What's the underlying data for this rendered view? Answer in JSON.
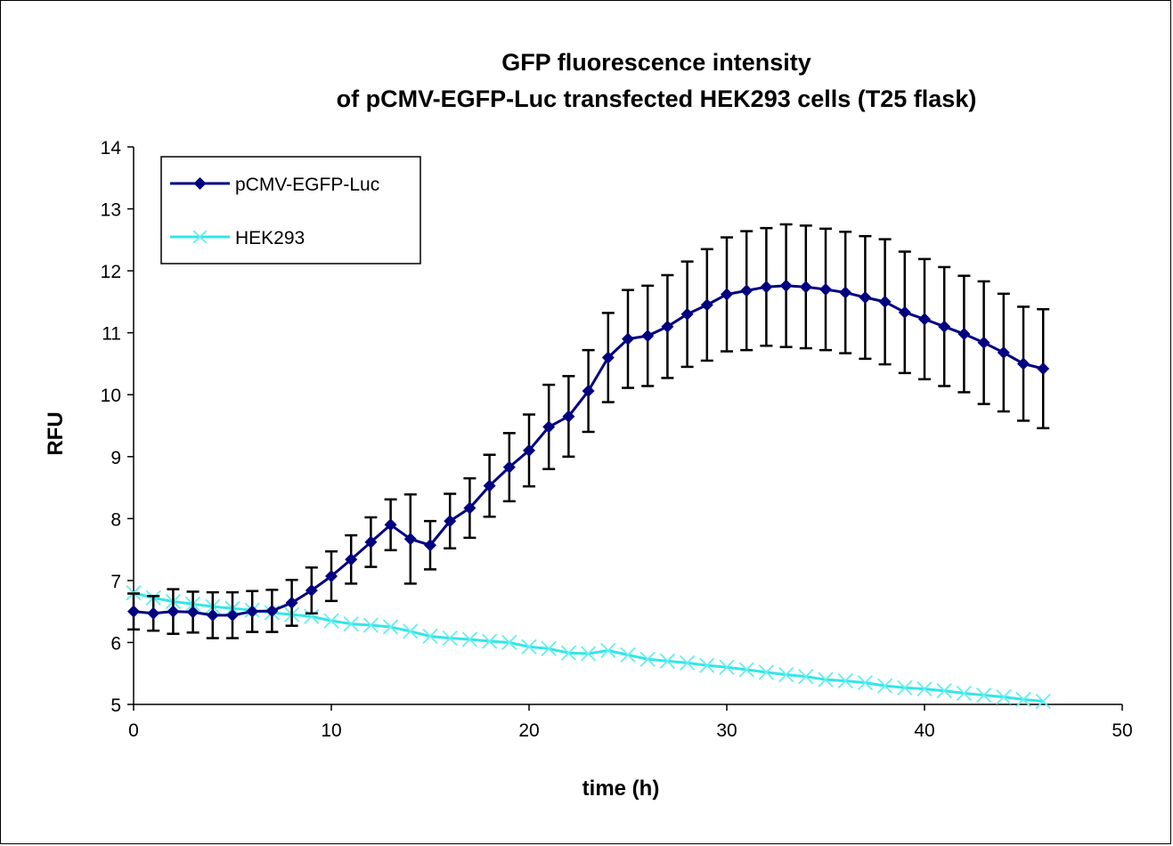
{
  "chart_data": {
    "type": "line",
    "title": [
      "GFP fluorescence intensity",
      "of pCMV-EGFP-Luc transfected HEK293 cells (T25 flask)"
    ],
    "xlabel": "time (h)",
    "ylabel": "RFU",
    "xlim": [
      0,
      50
    ],
    "ylim": [
      5,
      14
    ],
    "xticks": [
      0,
      10,
      20,
      30,
      40,
      50
    ],
    "yticks": [
      5,
      6,
      7,
      8,
      9,
      10,
      11,
      12,
      13,
      14
    ],
    "grid": false,
    "legend_position": "top-left",
    "series": [
      {
        "name": "pCMV-EGFP-Luc",
        "color": "#000080",
        "marker": "diamond",
        "error_bars": true,
        "x": [
          0,
          1,
          2,
          3,
          4,
          5,
          6,
          7,
          8,
          9,
          10,
          11,
          12,
          13,
          14,
          15,
          16,
          17,
          18,
          19,
          20,
          21,
          22,
          23,
          24,
          25,
          26,
          27,
          28,
          29,
          30,
          31,
          32,
          33,
          34,
          35,
          36,
          37,
          38,
          39,
          40,
          41,
          42,
          43,
          44,
          45,
          46
        ],
        "values": [
          6.5,
          6.47,
          6.5,
          6.49,
          6.44,
          6.44,
          6.5,
          6.51,
          6.64,
          6.84,
          7.07,
          7.34,
          7.62,
          7.9,
          7.67,
          7.57,
          7.96,
          8.17,
          8.53,
          8.83,
          9.1,
          9.48,
          9.65,
          10.06,
          10.6,
          10.9,
          10.95,
          11.1,
          11.3,
          11.45,
          11.62,
          11.68,
          11.74,
          11.76,
          11.74,
          11.7,
          11.65,
          11.57,
          11.5,
          11.33,
          11.22,
          11.1,
          10.98,
          10.84,
          10.68,
          10.5,
          10.42
        ],
        "error": [
          0.29,
          0.28,
          0.36,
          0.33,
          0.37,
          0.37,
          0.33,
          0.34,
          0.37,
          0.37,
          0.4,
          0.39,
          0.4,
          0.41,
          0.72,
          0.39,
          0.44,
          0.48,
          0.5,
          0.55,
          0.58,
          0.68,
          0.65,
          0.66,
          0.72,
          0.79,
          0.81,
          0.83,
          0.85,
          0.9,
          0.92,
          0.96,
          0.95,
          0.99,
          0.99,
          0.98,
          0.98,
          0.99,
          1.01,
          0.98,
          0.97,
          0.96,
          0.94,
          0.99,
          0.95,
          0.92,
          0.96
        ]
      },
      {
        "name": "HEK293",
        "color": "#33E6E6",
        "marker": "x",
        "error_bars": false,
        "x": [
          0,
          1,
          2,
          3,
          4,
          5,
          6,
          7,
          8,
          9,
          10,
          11,
          12,
          13,
          14,
          15,
          16,
          17,
          18,
          19,
          20,
          21,
          22,
          23,
          24,
          25,
          26,
          27,
          28,
          29,
          30,
          31,
          32,
          33,
          34,
          35,
          36,
          37,
          38,
          39,
          40,
          41,
          42,
          43,
          44,
          45,
          46
        ],
        "values": [
          6.8,
          6.72,
          6.66,
          6.62,
          6.58,
          6.55,
          6.52,
          6.48,
          6.45,
          6.42,
          6.35,
          6.3,
          6.28,
          6.25,
          6.18,
          6.1,
          6.07,
          6.05,
          6.02,
          6.0,
          5.93,
          5.9,
          5.83,
          5.82,
          5.87,
          5.8,
          5.73,
          5.7,
          5.67,
          5.63,
          5.6,
          5.56,
          5.52,
          5.48,
          5.45,
          5.4,
          5.38,
          5.35,
          5.3,
          5.27,
          5.25,
          5.22,
          5.18,
          5.15,
          5.12,
          5.08,
          5.05
        ]
      }
    ]
  }
}
